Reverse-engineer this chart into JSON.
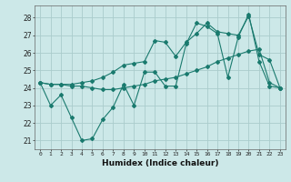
{
  "title": "",
  "xlabel": "Humidex (Indice chaleur)",
  "ylabel": "",
  "bg_color": "#cce8e8",
  "grid_color": "#aacccc",
  "line_color": "#1a7a6e",
  "xlim": [
    -0.5,
    23.5
  ],
  "ylim": [
    20.5,
    28.7
  ],
  "xticks": [
    0,
    1,
    2,
    3,
    4,
    5,
    6,
    7,
    8,
    9,
    10,
    11,
    12,
    13,
    14,
    15,
    16,
    17,
    18,
    19,
    20,
    21,
    22,
    23
  ],
  "yticks": [
    21,
    22,
    23,
    24,
    25,
    26,
    27,
    28
  ],
  "series": [
    [
      24.3,
      23.0,
      23.6,
      22.3,
      21.0,
      21.1,
      22.2,
      22.9,
      24.2,
      23.0,
      24.9,
      24.9,
      24.1,
      24.1,
      26.5,
      27.7,
      27.5,
      27.1,
      24.6,
      26.9,
      28.2,
      25.5,
      24.1,
      24.0
    ],
    [
      24.3,
      24.2,
      24.2,
      24.1,
      24.1,
      24.0,
      23.9,
      23.9,
      24.0,
      24.1,
      24.2,
      24.4,
      24.5,
      24.6,
      24.8,
      25.0,
      25.2,
      25.5,
      25.7,
      25.9,
      26.1,
      26.2,
      24.3,
      24.0
    ],
    [
      24.3,
      24.2,
      24.2,
      24.2,
      24.3,
      24.4,
      24.6,
      24.9,
      25.3,
      25.4,
      25.5,
      26.7,
      26.6,
      25.8,
      26.6,
      27.1,
      27.7,
      27.2,
      27.1,
      27.0,
      28.1,
      25.9,
      25.6,
      24.0
    ]
  ]
}
